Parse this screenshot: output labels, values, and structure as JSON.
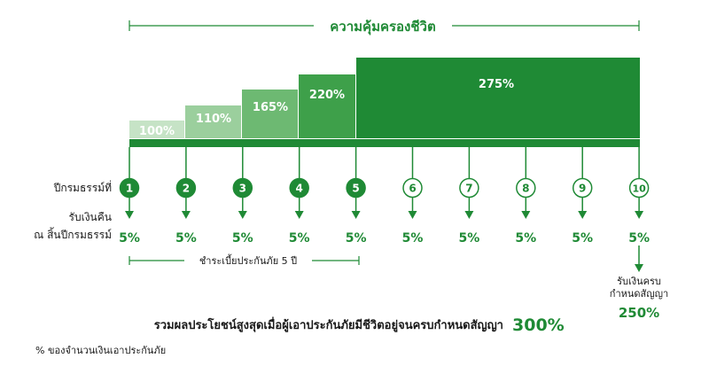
{
  "diagram": {
    "coverage_title": "ความคุ้มครองชีวิต",
    "steps": [
      {
        "percent": "100%",
        "color": "#c6e3c6"
      },
      {
        "percent": "110%",
        "color": "#9bcf9d"
      },
      {
        "percent": "165%",
        "color": "#6db972"
      },
      {
        "percent": "220%",
        "color": "#3ea04a"
      },
      {
        "percent": "275%",
        "color": "#1f8a35"
      }
    ],
    "policy_year_label": "ปีกรมธรรม์ที่",
    "years": [
      "1",
      "2",
      "3",
      "4",
      "5",
      "6",
      "7",
      "8",
      "9",
      "10"
    ],
    "refund_label_line1": "รับเงินคืน",
    "refund_label_line2": "ณ สิ้นปีกรมธรรม์",
    "refunds": [
      "5%",
      "5%",
      "5%",
      "5%",
      "5%",
      "5%",
      "5%",
      "5%",
      "5%",
      "5%"
    ],
    "premium_period": "ชำระเบี้ยประกันภัย 5 ปี",
    "maturity_line1": "รับเงินครบ",
    "maturity_line2": "กำหนดสัญญา",
    "maturity_value": "250%",
    "total_benefit_text": "รวมผลประโยชน์สูงสุดเมื่อผู้เอาประกันภัยมีชีวิตอยู่จนครบกำหนดสัญญา",
    "total_benefit_value": "300%",
    "footnote": "% ของจำนวนเงินเอาประกันภัย",
    "colors": {
      "primary": "#1f8a35",
      "text": "#1a1a1a",
      "white": "#ffffff"
    }
  }
}
